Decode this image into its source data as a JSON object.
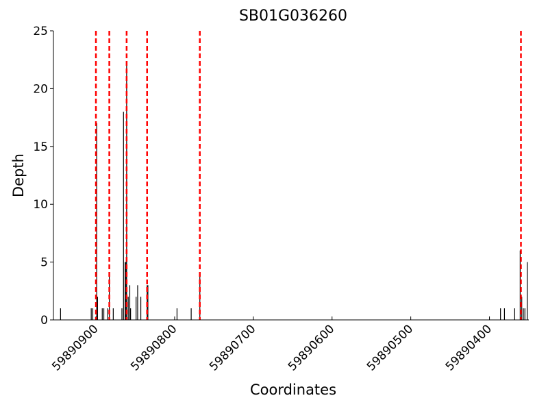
{
  "chart_data": {
    "type": "bar",
    "title": "SB01G036260",
    "x_label": "Coordinates",
    "y_label": "Depth",
    "x": [
      59890945,
      59890906,
      59890904,
      59890899,
      59890898,
      59890892,
      59890890,
      59890885,
      59890883,
      59890878,
      59890867,
      59890865,
      59890863,
      59890862,
      59890861,
      59890859,
      59890857,
      59890856,
      59890849,
      59890847,
      59890843,
      59890835,
      59890834,
      59890797,
      59890779,
      59890768,
      59890386,
      59890381,
      59890368,
      59890361,
      59890359,
      59890357,
      59890355,
      59890352
    ],
    "values": [
      1,
      1,
      1,
      17,
      2,
      1,
      1,
      1,
      4,
      1,
      1,
      18,
      5,
      5,
      22,
      2,
      3,
      1,
      2,
      3,
      2,
      3,
      3,
      1,
      1,
      4,
      1,
      1,
      1,
      6,
      2,
      1,
      1,
      5
    ],
    "color": "#000000",
    "vlines": [
      59890900,
      59890883,
      59890861,
      59890835,
      59890768,
      59890360
    ],
    "vline_color": "#ff0000",
    "xlim": [
      59890954,
      59890350
    ],
    "ylim": [
      0,
      25
    ],
    "xticks": [
      59890900,
      59890800,
      59890700,
      59890600,
      59890500,
      59890400
    ],
    "yticks": [
      0,
      5,
      10,
      15,
      20,
      25
    ]
  }
}
